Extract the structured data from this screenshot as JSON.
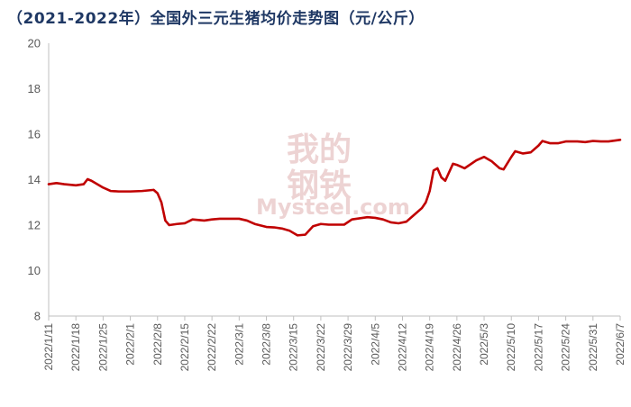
{
  "title": "（2021-2022年）全国外三元生猪均价走势图（元/公斤）",
  "watermark": {
    "line1": "我的",
    "line2": "钢铁",
    "line3": "Mysteel.com",
    "color": "#d9a0a0"
  },
  "colors": {
    "series": "#c00000",
    "axis": "#bfbfbf",
    "tick_text": "#595959",
    "title": "#1f3864"
  },
  "chart_data": {
    "type": "line",
    "title": "（2021-2022年）全国外三元生猪均价走势图（元/公斤）",
    "xlabel": "",
    "ylabel": "",
    "ylim": [
      8,
      20
    ],
    "yticks": [
      8,
      10,
      12,
      14,
      16,
      18,
      20
    ],
    "grid": false,
    "legend": "none",
    "x_range": [
      "2022/1/11",
      "2022/6/7"
    ],
    "xtick_labels": [
      "2022/1/11",
      "2022/1/18",
      "2022/1/25",
      "2022/2/1",
      "2022/2/8",
      "2022/2/15",
      "2022/2/22",
      "2022/3/1",
      "2022/3/8",
      "2022/3/15",
      "2022/3/22",
      "2022/3/29",
      "2022/4/5",
      "2022/4/12",
      "2022/4/19",
      "2022/4/26",
      "2022/5/3",
      "2022/5/10",
      "2022/5/17",
      "2022/5/24",
      "2022/5/31",
      "2022/6/7"
    ],
    "series": [
      {
        "points": [
          [
            "2022/1/11",
            13.8
          ],
          [
            "2022/1/13",
            13.85
          ],
          [
            "2022/1/15",
            13.8
          ],
          [
            "2022/1/18",
            13.75
          ],
          [
            "2022/1/20",
            13.8
          ],
          [
            "2022/1/21",
            14.02
          ],
          [
            "2022/1/22",
            13.95
          ],
          [
            "2022/1/25",
            13.65
          ],
          [
            "2022/1/27",
            13.5
          ],
          [
            "2022/1/29",
            13.48
          ],
          [
            "2022/2/1",
            13.48
          ],
          [
            "2022/2/4",
            13.5
          ],
          [
            "2022/2/7",
            13.55
          ],
          [
            "2022/2/8",
            13.4
          ],
          [
            "2022/2/9",
            13.0
          ],
          [
            "2022/2/10",
            12.2
          ],
          [
            "2022/2/11",
            12.0
          ],
          [
            "2022/2/13",
            12.05
          ],
          [
            "2022/2/15",
            12.08
          ],
          [
            "2022/2/17",
            12.25
          ],
          [
            "2022/2/20",
            12.2
          ],
          [
            "2022/2/22",
            12.25
          ],
          [
            "2022/2/24",
            12.28
          ],
          [
            "2022/2/27",
            12.28
          ],
          [
            "2022/3/1",
            12.28
          ],
          [
            "2022/3/3",
            12.2
          ],
          [
            "2022/3/5",
            12.05
          ],
          [
            "2022/3/8",
            11.92
          ],
          [
            "2022/3/10",
            11.9
          ],
          [
            "2022/3/12",
            11.85
          ],
          [
            "2022/3/14",
            11.75
          ],
          [
            "2022/3/16",
            11.55
          ],
          [
            "2022/3/18",
            11.58
          ],
          [
            "2022/3/20",
            11.95
          ],
          [
            "2022/3/22",
            12.05
          ],
          [
            "2022/3/24",
            12.02
          ],
          [
            "2022/3/26",
            12.02
          ],
          [
            "2022/3/28",
            12.02
          ],
          [
            "2022/3/30",
            12.25
          ],
          [
            "2022/4/1",
            12.3
          ],
          [
            "2022/4/3",
            12.35
          ],
          [
            "2022/4/5",
            12.32
          ],
          [
            "2022/4/7",
            12.25
          ],
          [
            "2022/4/9",
            12.12
          ],
          [
            "2022/4/11",
            12.08
          ],
          [
            "2022/4/13",
            12.15
          ],
          [
            "2022/4/15",
            12.45
          ],
          [
            "2022/4/17",
            12.75
          ],
          [
            "2022/4/18",
            13.0
          ],
          [
            "2022/4/19",
            13.5
          ],
          [
            "2022/4/20",
            14.4
          ],
          [
            "2022/4/21",
            14.5
          ],
          [
            "2022/4/22",
            14.1
          ],
          [
            "2022/4/23",
            13.95
          ],
          [
            "2022/4/25",
            14.7
          ],
          [
            "2022/4/26",
            14.65
          ],
          [
            "2022/4/28",
            14.5
          ],
          [
            "2022/5/1",
            14.85
          ],
          [
            "2022/5/3",
            15.0
          ],
          [
            "2022/5/5",
            14.8
          ],
          [
            "2022/5/7",
            14.5
          ],
          [
            "2022/5/8",
            14.45
          ],
          [
            "2022/5/10",
            15.0
          ],
          [
            "2022/5/11",
            15.25
          ],
          [
            "2022/5/13",
            15.15
          ],
          [
            "2022/5/15",
            15.2
          ],
          [
            "2022/5/17",
            15.5
          ],
          [
            "2022/5/18",
            15.7
          ],
          [
            "2022/5/20",
            15.6
          ],
          [
            "2022/5/22",
            15.6
          ],
          [
            "2022/5/24",
            15.68
          ],
          [
            "2022/5/27",
            15.68
          ],
          [
            "2022/5/29",
            15.65
          ],
          [
            "2022/5/31",
            15.7
          ],
          [
            "2022/6/2",
            15.68
          ],
          [
            "2022/6/4",
            15.68
          ],
          [
            "2022/6/7",
            15.75
          ]
        ]
      }
    ]
  }
}
